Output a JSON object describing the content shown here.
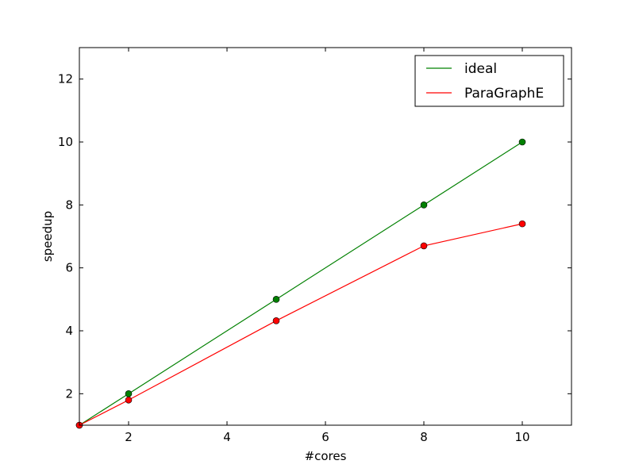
{
  "chart_data": {
    "type": "line",
    "xlabel": "#cores",
    "ylabel": "speedup",
    "xlim": [
      1,
      11
    ],
    "ylim": [
      1,
      13
    ],
    "xticks": [
      2,
      4,
      6,
      8,
      10
    ],
    "yticks": [
      2,
      4,
      6,
      8,
      10,
      12
    ],
    "legend_position": "top-right",
    "grid": false,
    "series": [
      {
        "name": "ideal",
        "color": "#008000",
        "x": [
          1,
          2,
          5,
          8,
          10
        ],
        "y": [
          1,
          2,
          5,
          8,
          10
        ]
      },
      {
        "name": "ParaGraphE",
        "color": "#ff0000",
        "x": [
          1,
          2,
          5,
          8,
          10
        ],
        "y": [
          1,
          1.8,
          4.32,
          6.7,
          7.4
        ]
      }
    ]
  }
}
